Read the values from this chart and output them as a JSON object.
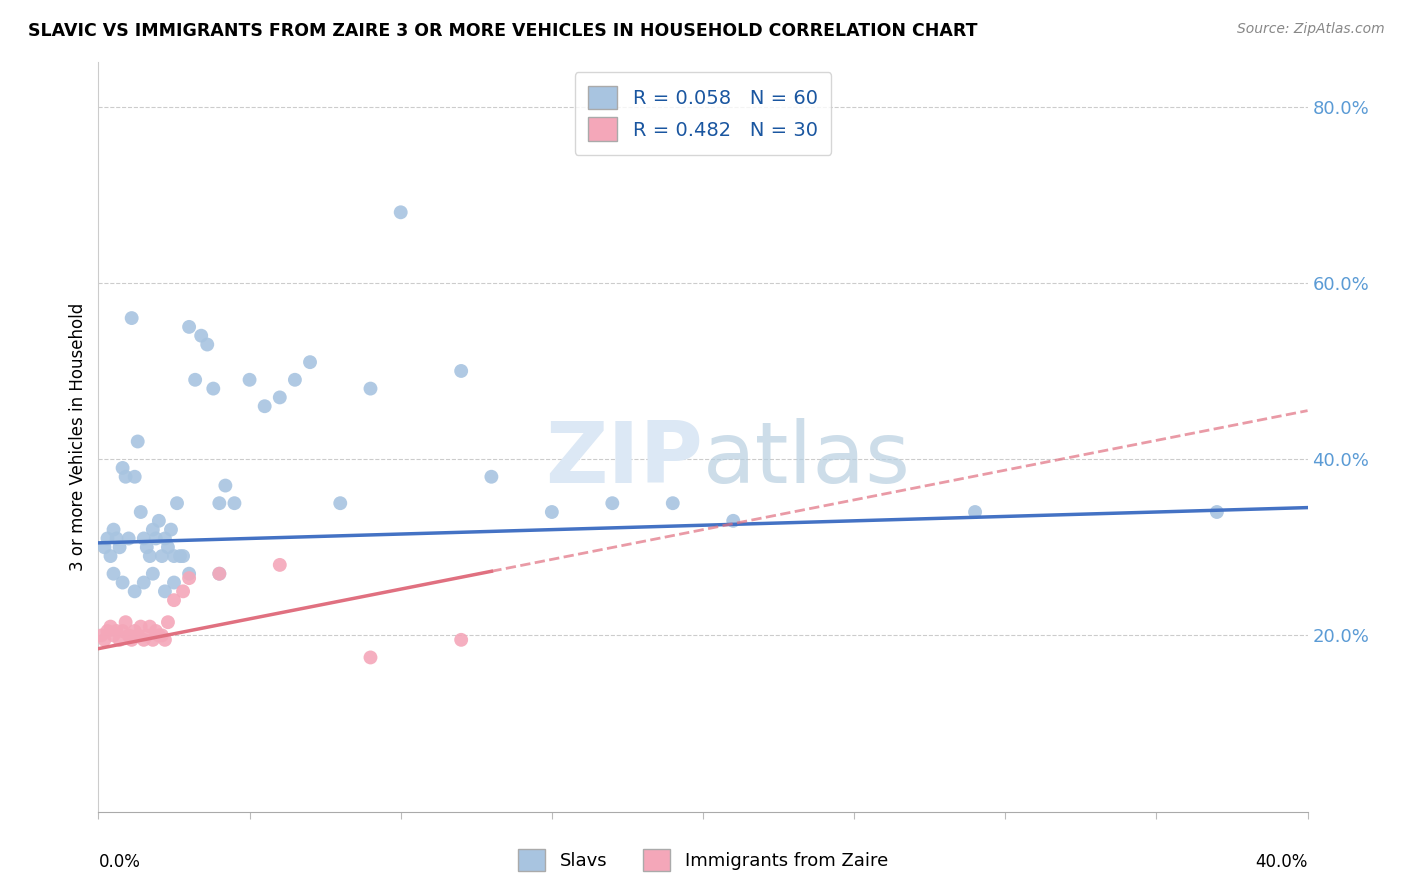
{
  "title": "SLAVIC VS IMMIGRANTS FROM ZAIRE 3 OR MORE VEHICLES IN HOUSEHOLD CORRELATION CHART",
  "source": "Source: ZipAtlas.com",
  "ylabel": "3 or more Vehicles in Household",
  "ylabel_right_ticks": [
    "20.0%",
    "40.0%",
    "60.0%",
    "80.0%"
  ],
  "ylabel_right_vals": [
    0.2,
    0.4,
    0.6,
    0.8
  ],
  "legend_bottom1": "Slavs",
  "legend_bottom2": "Immigrants from Zaire",
  "slavs_color": "#a8c4e0",
  "zaire_color": "#f4a7b9",
  "slavs_line_color": "#4472c4",
  "zaire_line_color": "#e07080",
  "background_color": "#ffffff",
  "watermark_color": "#dce8f5",
  "xlim": [
    0.0,
    0.4
  ],
  "ylim": [
    0.0,
    0.85
  ],
  "slavs_x": [
    0.002,
    0.003,
    0.004,
    0.005,
    0.006,
    0.007,
    0.008,
    0.009,
    0.01,
    0.011,
    0.012,
    0.013,
    0.014,
    0.015,
    0.016,
    0.017,
    0.018,
    0.019,
    0.02,
    0.021,
    0.022,
    0.023,
    0.024,
    0.025,
    0.026,
    0.027,
    0.028,
    0.03,
    0.032,
    0.034,
    0.036,
    0.038,
    0.04,
    0.042,
    0.045,
    0.05,
    0.055,
    0.06,
    0.065,
    0.07,
    0.08,
    0.09,
    0.1,
    0.12,
    0.13,
    0.15,
    0.17,
    0.19,
    0.21,
    0.29,
    0.005,
    0.008,
    0.012,
    0.015,
    0.018,
    0.022,
    0.025,
    0.03,
    0.04,
    0.37
  ],
  "slavs_y": [
    0.3,
    0.31,
    0.29,
    0.32,
    0.31,
    0.3,
    0.39,
    0.38,
    0.31,
    0.56,
    0.38,
    0.42,
    0.34,
    0.31,
    0.3,
    0.29,
    0.32,
    0.31,
    0.33,
    0.29,
    0.31,
    0.3,
    0.32,
    0.29,
    0.35,
    0.29,
    0.29,
    0.55,
    0.49,
    0.54,
    0.53,
    0.48,
    0.35,
    0.37,
    0.35,
    0.49,
    0.46,
    0.47,
    0.49,
    0.51,
    0.35,
    0.48,
    0.68,
    0.5,
    0.38,
    0.34,
    0.35,
    0.35,
    0.33,
    0.34,
    0.27,
    0.26,
    0.25,
    0.26,
    0.27,
    0.25,
    0.26,
    0.27,
    0.27,
    0.34
  ],
  "zaire_x": [
    0.001,
    0.002,
    0.003,
    0.004,
    0.005,
    0.006,
    0.007,
    0.008,
    0.009,
    0.01,
    0.011,
    0.012,
    0.013,
    0.014,
    0.015,
    0.016,
    0.017,
    0.018,
    0.019,
    0.02,
    0.021,
    0.022,
    0.023,
    0.025,
    0.028,
    0.03,
    0.04,
    0.06,
    0.09,
    0.12
  ],
  "zaire_y": [
    0.2,
    0.195,
    0.205,
    0.21,
    0.2,
    0.205,
    0.195,
    0.205,
    0.215,
    0.2,
    0.195,
    0.205,
    0.2,
    0.21,
    0.195,
    0.2,
    0.21,
    0.195,
    0.205,
    0.2,
    0.2,
    0.195,
    0.215,
    0.24,
    0.25,
    0.265,
    0.27,
    0.28,
    0.175,
    0.195
  ],
  "slavs_line_x0": 0.0,
  "slavs_line_x1": 0.4,
  "slavs_line_y0": 0.305,
  "slavs_line_y1": 0.345,
  "zaire_line_x0": 0.0,
  "zaire_line_x1": 0.4,
  "zaire_line_y0": 0.185,
  "zaire_line_y1": 0.455
}
